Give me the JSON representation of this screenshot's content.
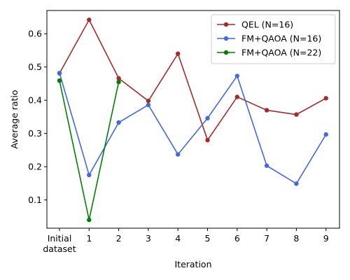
{
  "chart_data": {
    "type": "line",
    "title": "",
    "xlabel": "Iteration",
    "ylabel": "Average ratio",
    "x_categories": [
      "Initial\ndataset",
      "1",
      "2",
      "3",
      "4",
      "5",
      "6",
      "7",
      "8",
      "9"
    ],
    "yticks": [
      "0.1",
      "0.2",
      "0.3",
      "0.4",
      "0.5",
      "0.6"
    ],
    "ylim": [
      0.015,
      0.67
    ],
    "grid": false,
    "legend_position": "top-right",
    "series": [
      {
        "name": "QEL (N=16)",
        "color": "#a52a2a",
        "values": [
          0.481,
          0.642,
          0.466,
          0.398,
          0.54,
          0.28,
          0.41,
          0.37,
          0.357,
          0.406
        ]
      },
      {
        "name": "FM+QAOA (N=16)",
        "color": "#4169e1",
        "values": [
          0.482,
          0.175,
          0.333,
          0.386,
          0.237,
          0.346,
          0.473,
          0.203,
          0.149,
          0.297
        ]
      },
      {
        "name": "FM+QAOA (N=22)",
        "color": "#008000",
        "values": [
          0.459,
          0.04,
          0.455
        ]
      }
    ]
  }
}
